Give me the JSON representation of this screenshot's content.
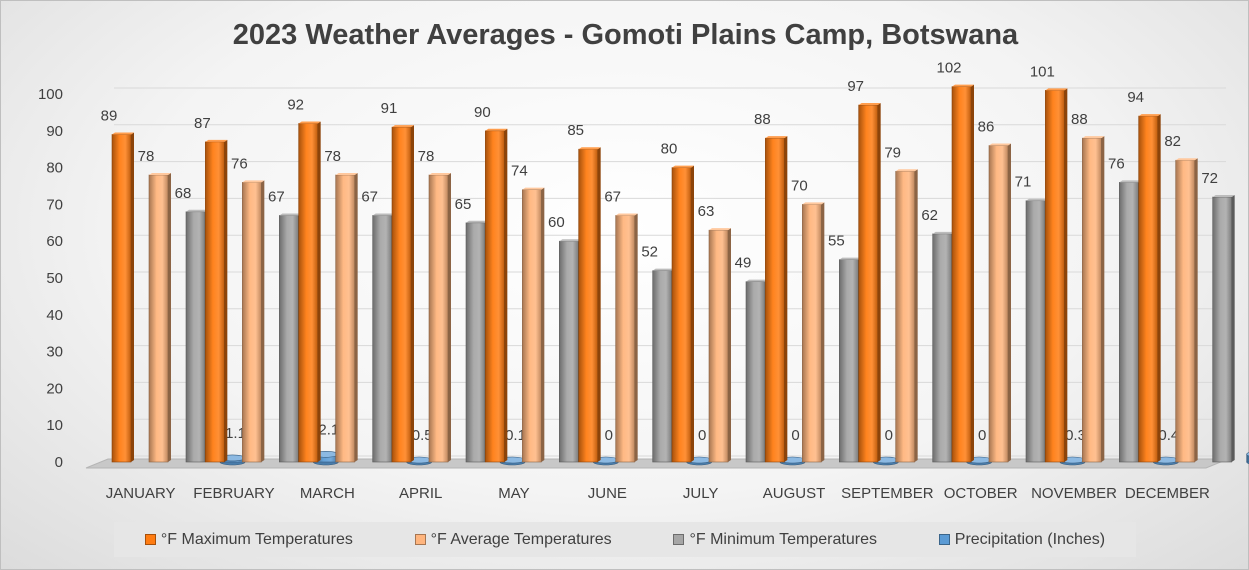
{
  "title": "2023 Weather Averages - Gomoti Plains Camp, Botswana",
  "colors": {
    "max": "#ff7c12",
    "avg": "#ffb57e",
    "min": "#a6a6a6",
    "precip": "#5b9bd5"
  },
  "chart_data": {
    "type": "bar",
    "categories": [
      "JANUARY",
      "FEBRUARY",
      "MARCH",
      "APRIL",
      "MAY",
      "JUNE",
      "JULY",
      "AUGUST",
      "SEPTEMBER",
      "OCTOBER",
      "NOVEMBER",
      "DECEMBER"
    ],
    "series": [
      {
        "name": "°F Maximum Temperatures",
        "key": "max",
        "values": [
          89,
          87,
          92,
          91,
          90,
          85,
          80,
          88,
          97,
          102,
          101,
          94
        ]
      },
      {
        "name": "°F Average Temperatures",
        "key": "avg",
        "values": [
          78,
          76,
          78,
          78,
          74,
          67,
          63,
          70,
          79,
          86,
          88,
          82
        ]
      },
      {
        "name": "°F Minimum Temperatures",
        "key": "min",
        "values": [
          68,
          67,
          67,
          65,
          60,
          52,
          49,
          55,
          62,
          71,
          76,
          72
        ]
      },
      {
        "name": "Precipitation (Inches)",
        "key": "precip",
        "values": [
          1.1,
          2.1,
          0.5,
          0.1,
          0,
          0,
          0,
          0,
          0,
          0.3,
          0.4,
          2.1
        ]
      }
    ],
    "yticks": [
      0,
      10,
      20,
      30,
      40,
      50,
      60,
      70,
      80,
      90,
      100
    ],
    "ylim": [
      0,
      100
    ],
    "grid": true,
    "legend_position": "bottom"
  }
}
